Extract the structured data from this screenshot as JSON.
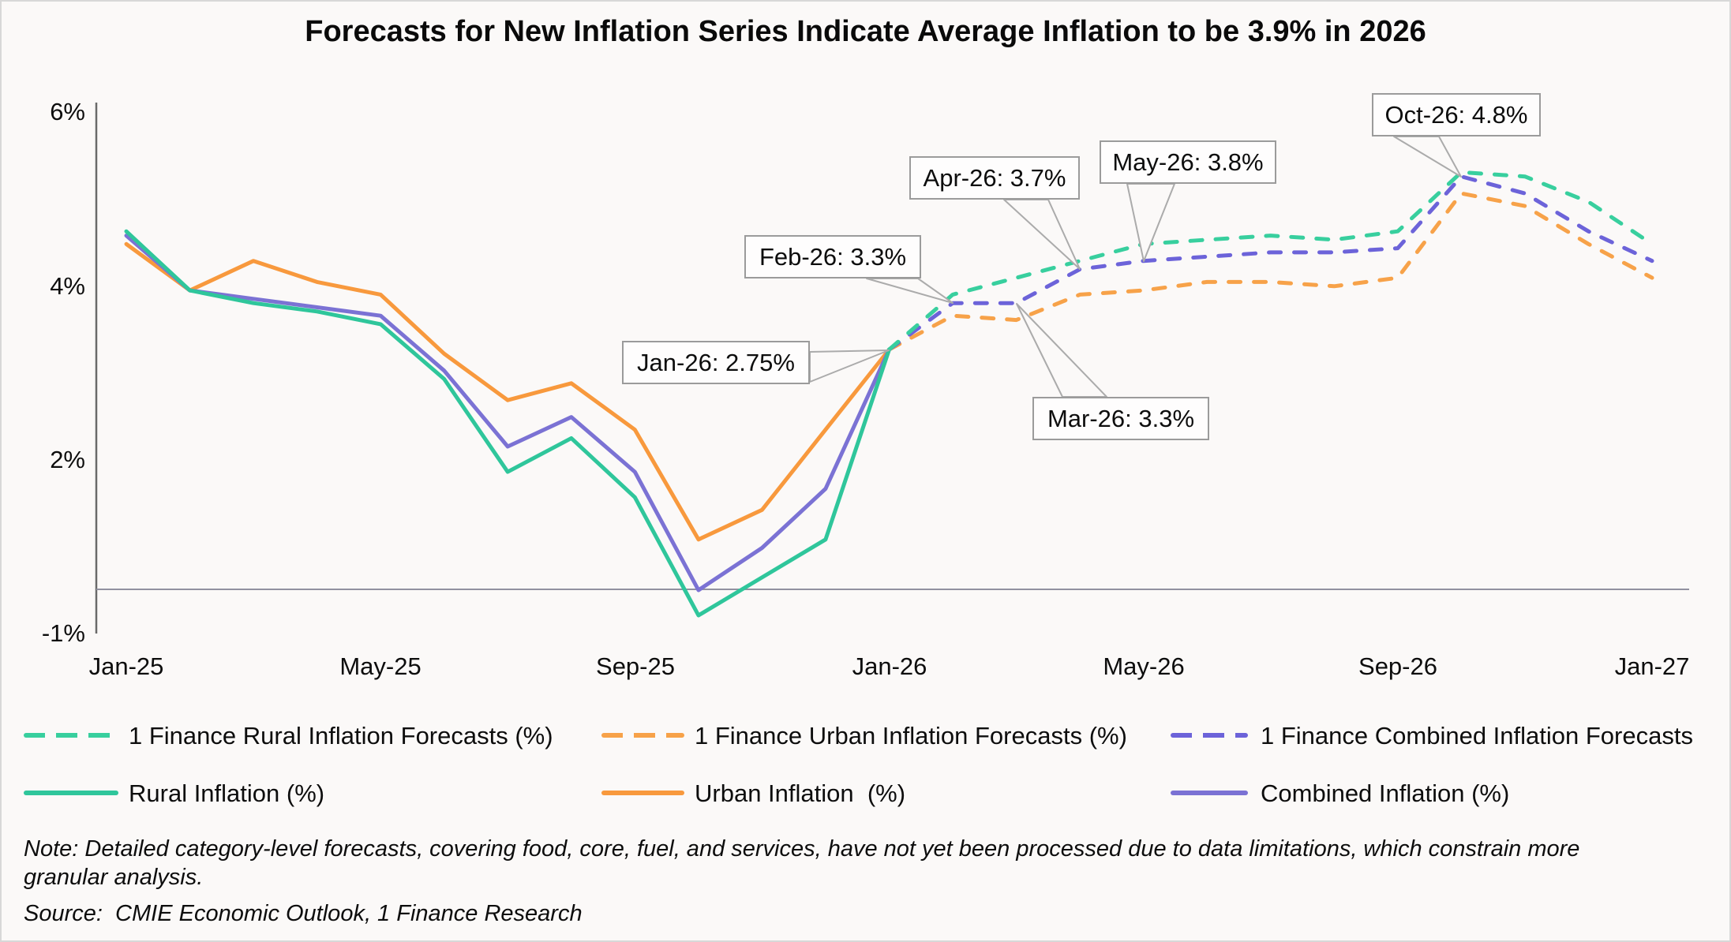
{
  "title": {
    "text": "Forecasts for New Inflation Series Indicate Average Inflation to be 3.9% in 2026"
  },
  "y_axis": {
    "tick_labels": [
      "6%",
      "4%",
      "2%",
      "-1%"
    ]
  },
  "x_axis": {
    "tick_labels": [
      "Jan-25",
      "May-25",
      "Sep-25",
      "Jan-26",
      "May-26",
      "Sep-26",
      "Jan-27"
    ]
  },
  "chart_data": {
    "type": "line",
    "x": [
      "Jan-25",
      "Feb-25",
      "Mar-25",
      "Apr-25",
      "May-25",
      "Jun-25",
      "Jul-25",
      "Aug-25",
      "Sep-25",
      "Oct-25",
      "Nov-25",
      "Dec-25",
      "Jan-26",
      "Feb-26",
      "Mar-26",
      "Apr-26",
      "May-26",
      "Jun-26",
      "Jul-26",
      "Aug-26",
      "Sep-26",
      "Oct-26",
      "Nov-26",
      "Dec-26",
      "Jan-27"
    ],
    "series": [
      {
        "name": "Urban Inflation (%)",
        "style": "solid",
        "color": "#f8993d",
        "values": [
          4.0,
          3.45,
          3.8,
          3.55,
          3.4,
          2.7,
          2.15,
          2.35,
          1.8,
          0.5,
          0.85,
          1.8,
          2.75,
          null,
          null,
          null,
          null,
          null,
          null,
          null,
          null,
          null,
          null,
          null,
          null
        ]
      },
      {
        "name": "Combined Inflation (%)",
        "style": "solid",
        "color": "#7b72d4",
        "values": [
          4.1,
          3.45,
          3.35,
          3.25,
          3.15,
          2.5,
          1.6,
          1.95,
          1.3,
          -0.1,
          0.4,
          1.1,
          2.75,
          null,
          null,
          null,
          null,
          null,
          null,
          null,
          null,
          null,
          null,
          null,
          null
        ]
      },
      {
        "name": "Rural Inflation (%)",
        "style": "solid",
        "color": "#2fc69b",
        "values": [
          4.15,
          3.45,
          3.3,
          3.2,
          3.05,
          2.4,
          1.3,
          1.7,
          1.0,
          -0.4,
          0.05,
          0.5,
          2.75,
          null,
          null,
          null,
          null,
          null,
          null,
          null,
          null,
          null,
          null,
          null,
          null
        ]
      },
      {
        "name": "1 Finance Urban Inflation Forecasts (%)",
        "style": "dashed",
        "color": "#f7a249",
        "values": [
          null,
          null,
          null,
          null,
          null,
          null,
          null,
          null,
          null,
          null,
          null,
          null,
          2.75,
          3.15,
          3.1,
          3.4,
          3.45,
          3.55,
          3.55,
          3.5,
          3.6,
          4.6,
          4.45,
          4.0,
          3.6
        ]
      },
      {
        "name": "1 Finance Combined Inflation Forecasts (%)",
        "style": "dashed",
        "color": "#6c63d9",
        "values": [
          null,
          null,
          null,
          null,
          null,
          null,
          null,
          null,
          null,
          null,
          null,
          null,
          2.75,
          3.3,
          3.3,
          3.7,
          3.8,
          3.85,
          3.9,
          3.9,
          3.95,
          4.8,
          4.6,
          4.15,
          3.8
        ]
      },
      {
        "name": "1 Finance Rural Inflation Forecasts (%)",
        "style": "dashed",
        "color": "#38cf9e",
        "values": [
          null,
          null,
          null,
          null,
          null,
          null,
          null,
          null,
          null,
          null,
          null,
          null,
          2.75,
          3.4,
          3.6,
          3.8,
          4.0,
          4.05,
          4.1,
          4.05,
          4.15,
          4.85,
          4.8,
          4.5,
          4.0
        ]
      }
    ],
    "annotations": [
      {
        "label": "Jan-26: 2.75%",
        "month": "Jan-26",
        "value": 2.75
      },
      {
        "label": "Feb-26: 3.3%",
        "month": "Feb-26",
        "value": 3.3
      },
      {
        "label": "Mar-26: 3.3%",
        "month": "Mar-26",
        "value": 3.3
      },
      {
        "label": "Apr-26: 3.7%",
        "month": "Apr-26",
        "value": 3.7
      },
      {
        "label": "May-26: 3.8%",
        "month": "May-26",
        "value": 3.8
      },
      {
        "label": "Oct-26: 4.8%",
        "month": "Oct-26",
        "value": 4.8
      }
    ],
    "ylim": [
      -1,
      6
    ],
    "grid": false,
    "legend_position": "bottom"
  },
  "legend": {
    "row1": [
      {
        "label": "1 Finance Rural Inflation Forecasts (%)",
        "color": "#38cf9e",
        "dashed": true
      },
      {
        "label": "1 Finance Urban Inflation Forecasts (%)",
        "color": "#f7a249",
        "dashed": true
      },
      {
        "label": "1 Finance Combined Inflation Forecasts",
        "color": "#6c63d9",
        "dashed": true
      }
    ],
    "row2": [
      {
        "label": "Rural Inflation (%)",
        "color": "#2fc69b",
        "dashed": false
      },
      {
        "label": "Urban Inflation  (%)",
        "color": "#f8993d",
        "dashed": false
      },
      {
        "label": "Combined Inflation (%)",
        "color": "#7b72d4",
        "dashed": false
      }
    ]
  },
  "notes": {
    "note": "Note: Detailed category-level forecasts, covering food, core, fuel, and services, have not yet been processed due to data limitations, which constrain more granular analysis.",
    "source": "Source:  CMIE Economic Outlook, 1 Finance Research"
  }
}
